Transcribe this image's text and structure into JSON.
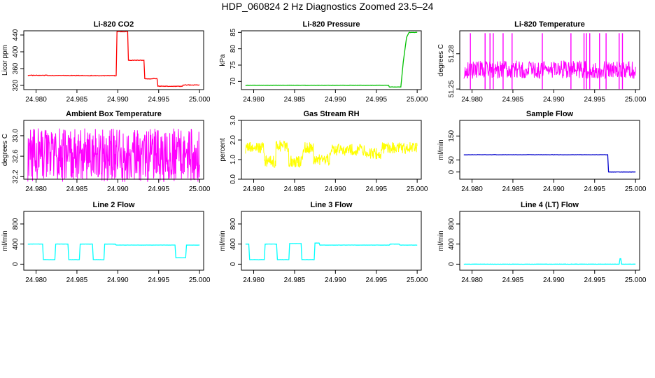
{
  "title": "HDP_060824  2 Hz Diagnostics Zoomed 23.5–24",
  "chart_data": [
    {
      "type": "line",
      "title": "Li-820 CO2",
      "ylabel": "Licor ppm",
      "xlim": [
        24.9785,
        25.0005
      ],
      "ylim": [
        310,
        450
      ],
      "xticks": [
        "24.980",
        "24.985",
        "24.990",
        "24.995",
        "25.000"
      ],
      "yticks": [
        "320",
        "360",
        "400",
        "440"
      ],
      "color": "#ff0000",
      "series": [
        {
          "x": [
            24.979,
            24.9898,
            24.9899,
            24.9912,
            24.9913,
            24.9932,
            24.9933,
            24.9948,
            24.9949,
            24.9979,
            24.998,
            25.0
          ],
          "y": [
            344,
            343,
            448,
            448,
            380,
            380,
            336,
            336,
            318,
            318,
            321,
            321
          ]
        }
      ]
    },
    {
      "type": "line",
      "title": "Li-820 Pressure",
      "ylabel": "kPa",
      "xlim": [
        24.9785,
        25.0005
      ],
      "ylim": [
        67.5,
        85.5
      ],
      "xticks": [
        "24.980",
        "24.985",
        "24.990",
        "24.995",
        "25.000"
      ],
      "yticks": [
        "70",
        "75",
        "80",
        "85"
      ],
      "color": "#00c000",
      "series": [
        {
          "x": [
            24.979,
            24.9965,
            24.9966,
            24.998,
            24.9983,
            24.9987,
            24.999,
            25.0
          ],
          "y": [
            68.8,
            68.8,
            68.3,
            68.3,
            76,
            83.5,
            85,
            85
          ]
        }
      ]
    },
    {
      "type": "line",
      "title": "Li-820 Temperature",
      "ylabel": "degrees C",
      "xlim": [
        24.9785,
        25.0005
      ],
      "ylim": [
        51.2495,
        51.2995
      ],
      "xticks": [
        "24.980",
        "24.985",
        "24.990",
        "24.995",
        "25.000"
      ],
      "yticks": [
        "51.25",
        "51.28"
      ],
      "color": "#ff00ff",
      "series": [
        {
          "x": [
            24.979,
            25.0
          ],
          "y": [
            51.25,
            51.274
          ]
        }
      ],
      "note_spikes_x": [
        24.9798,
        24.9816,
        24.9822,
        24.9826,
        24.9838,
        24.9849,
        24.9886,
        24.9921,
        24.9937,
        24.994,
        24.9944,
        24.9956,
        24.9964,
        24.998,
        24.9984
      ]
    },
    {
      "type": "line",
      "title": "Ambient Box Temperature",
      "ylabel": "degrees C",
      "xlim": [
        24.9785,
        25.0005
      ],
      "ylim": [
        32.15,
        33.3
      ],
      "xticks": [
        "24.980",
        "24.985",
        "24.990",
        "24.995",
        "25.000"
      ],
      "yticks": [
        "32.2",
        "32.6",
        "33.0"
      ],
      "color": "#ff00ff",
      "series": [
        {
          "x": [
            24.979,
            25.0
          ],
          "y": [
            32.2,
            33.2
          ]
        }
      ]
    },
    {
      "type": "line",
      "title": "Gas Stream RH",
      "ylabel": "percent",
      "xlim": [
        24.9785,
        25.0005
      ],
      "ylim": [
        0,
        3.0
      ],
      "xticks": [
        "24.980",
        "24.985",
        "24.990",
        "24.995",
        "25.000"
      ],
      "yticks": [
        "0.0",
        "1.0",
        "2.0",
        "3.0"
      ],
      "color": "#ffff00",
      "series": [
        {
          "x": [
            24.979,
            24.981,
            24.9813,
            24.9825,
            24.9827,
            24.9838,
            24.9843,
            24.9855,
            24.986,
            24.9868,
            24.9873,
            24.9888,
            24.9893,
            24.993,
            24.9936,
            24.9952,
            24.9956,
            25.0
          ],
          "y": [
            1.6,
            1.6,
            0.9,
            0.9,
            1.7,
            1.7,
            0.9,
            0.9,
            1.6,
            1.6,
            1.0,
            1.0,
            1.5,
            1.5,
            1.3,
            1.3,
            1.6,
            1.6
          ]
        }
      ]
    },
    {
      "type": "line",
      "title": "Sample Flow",
      "ylabel": "ml/min",
      "xlim": [
        24.9785,
        25.0005
      ],
      "ylim": [
        -30,
        215
      ],
      "xticks": [
        "24.980",
        "24.985",
        "24.990",
        "24.995",
        "25.000"
      ],
      "yticks": [
        "0",
        "50",
        "150"
      ],
      "color": "#0000cc",
      "series": [
        {
          "x": [
            24.979,
            24.9966,
            24.9967,
            25.0
          ],
          "y": [
            72,
            72,
            0,
            0
          ]
        }
      ]
    },
    {
      "type": "line",
      "title": "Line 2 Flow",
      "ylabel": "ml/min",
      "xlim": [
        24.9785,
        25.0005
      ],
      "ylim": [
        -120,
        1050
      ],
      "xticks": [
        "24.980",
        "24.985",
        "24.990",
        "24.995",
        "25.000"
      ],
      "yticks": [
        "0",
        "400",
        "800"
      ],
      "color": "#00ffff",
      "series": [
        {
          "x": [
            24.979,
            24.9808,
            24.9809,
            24.9823,
            24.9824,
            24.9839,
            24.984,
            24.9853,
            24.9854,
            24.9869,
            24.987,
            24.9883,
            24.9884,
            24.9897,
            24.9898,
            24.997,
            24.9971,
            24.9983,
            24.9984,
            25.0
          ],
          "y": [
            400,
            400,
            90,
            90,
            400,
            400,
            90,
            90,
            400,
            400,
            90,
            90,
            400,
            400,
            380,
            380,
            130,
            130,
            380,
            380
          ]
        }
      ]
    },
    {
      "type": "line",
      "title": "Line 3 Flow",
      "ylabel": "ml/min",
      "xlim": [
        24.9785,
        25.0005
      ],
      "ylim": [
        -120,
        1050
      ],
      "xticks": [
        "24.980",
        "24.985",
        "24.990",
        "24.995",
        "25.000"
      ],
      "yticks": [
        "0",
        "400",
        "800"
      ],
      "color": "#00ffff",
      "series": [
        {
          "x": [
            24.979,
            24.9794,
            24.9795,
            24.9813,
            24.9814,
            24.9828,
            24.9829,
            24.9843,
            24.9844,
            24.9858,
            24.9859,
            24.9874,
            24.9875,
            24.988,
            24.9881,
            24.9966,
            24.9967,
            24.9978,
            24.9979,
            25.0
          ],
          "y": [
            400,
            400,
            90,
            90,
            400,
            400,
            90,
            90,
            410,
            410,
            90,
            90,
            420,
            420,
            380,
            380,
            400,
            400,
            380,
            380
          ]
        }
      ]
    },
    {
      "type": "line",
      "title": "Line 4 (LT) Flow",
      "ylabel": "ml/min",
      "xlim": [
        24.9785,
        25.0005
      ],
      "ylim": [
        -120,
        1050
      ],
      "xticks": [
        "24.980",
        "24.985",
        "24.990",
        "24.995",
        "25.000"
      ],
      "yticks": [
        "0",
        "400",
        "800"
      ],
      "color": "#00ffff",
      "series": [
        {
          "x": [
            24.979,
            24.998,
            24.9981,
            24.9982,
            24.9983,
            25.0
          ],
          "y": [
            0,
            0,
            110,
            110,
            0,
            0
          ]
        }
      ]
    }
  ]
}
